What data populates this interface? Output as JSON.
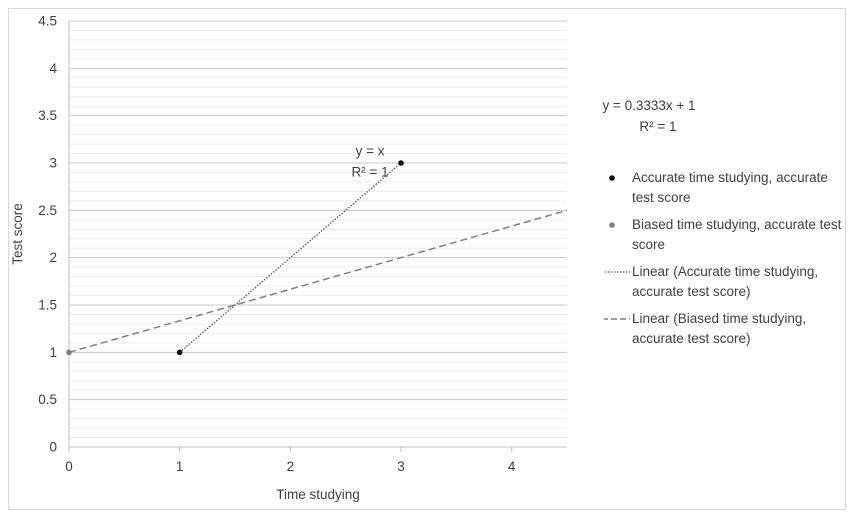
{
  "chart_data": {
    "type": "scatter",
    "title": "",
    "xlabel": "Time studying",
    "ylabel": "Test score",
    "xlim": [
      0,
      4.5
    ],
    "ylim": [
      0,
      4.5
    ],
    "x_ticks": [
      "0",
      "1",
      "2",
      "3",
      "4"
    ],
    "y_ticks": [
      "0",
      "0.5",
      "1",
      "1.5",
      "2",
      "2.5",
      "3",
      "3.5",
      "4",
      "4.5"
    ],
    "grid": "major and minor horizontal gridlines",
    "legend_position": "right",
    "series": [
      {
        "name": "Accurate time studying, accurate test score",
        "marker": "dot",
        "color": "#111111",
        "points": [
          {
            "x": 1,
            "y": 1
          },
          {
            "x": 3,
            "y": 3
          }
        ]
      },
      {
        "name": "Biased time studying, accurate test score",
        "marker": "dot",
        "color": "#7f7f7f",
        "points": [
          {
            "x": 0,
            "y": 1
          }
        ]
      }
    ],
    "trendlines": [
      {
        "name": "Linear (Accurate time studying, accurate test score)",
        "style": "dotted",
        "color": "#595959",
        "slope": 1,
        "intercept": 0,
        "x_range": [
          1,
          3
        ],
        "equation": "y = x",
        "r2": "R² = 1"
      },
      {
        "name": "Linear (Biased time studying, accurate test score)",
        "style": "dashed",
        "color": "#7f7f7f",
        "slope": 0.3333,
        "intercept": 1,
        "x_range": [
          0,
          4.5
        ],
        "equation": "y = 0.3333x + 1",
        "r2": "R² = 1"
      }
    ]
  },
  "legend": {
    "items": [
      {
        "label": "Accurate time studying, accurate test score",
        "marker": "dot-black"
      },
      {
        "label": "Biased time studying, accurate test score",
        "marker": "dot-gray"
      },
      {
        "label": "Linear (Accurate time studying, accurate test score)",
        "marker": "dotted-line"
      },
      {
        "label": "Linear (Biased time studying, accurate test score)",
        "marker": "dashed-line"
      }
    ]
  }
}
